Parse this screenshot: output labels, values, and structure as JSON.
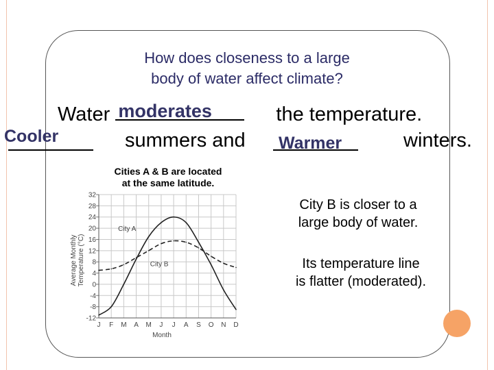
{
  "question": {
    "line1": "How does closeness to a large",
    "line2": "body of water affect climate?"
  },
  "sentence": {
    "water": "Water",
    "moderates_answer": "moderates",
    "temperature": "the temperature.",
    "cooler_answer": "Cooler",
    "summers_and": "summers and",
    "warmer_answer": "Warmer",
    "winters": "winters."
  },
  "note": {
    "line1": "Cities A & B are located",
    "line2": "at the same latitude."
  },
  "right_text": {
    "p1_line1": "City  B is closer to a",
    "p1_line2": "large body of water.",
    "p2_line1": "Its temperature line",
    "p2_line2": "is flatter (moderated)."
  },
  "colors": {
    "accent_dot": "#f6a366",
    "edge_line": "#f2c3ad",
    "title_text": "#2b2b66",
    "answer_text": "#333366"
  },
  "chart_data": {
    "type": "line",
    "xlabel": "Month",
    "ylabel": "Average Monthly Temperature (°C)",
    "categories": [
      "J",
      "F",
      "M",
      "A",
      "M",
      "J",
      "J",
      "A",
      "S",
      "O",
      "N",
      "D"
    ],
    "yticks": [
      32,
      28,
      24,
      20,
      16,
      12,
      8,
      4,
      0,
      -4,
      -8,
      -12
    ],
    "ylim": [
      -12,
      32
    ],
    "grid": true,
    "series": [
      {
        "name": "City A",
        "style": "solid",
        "values": [
          -11,
          -8,
          0,
          9,
          17,
          22,
          24,
          22,
          15,
          7,
          -2,
          -9
        ]
      },
      {
        "name": "City B",
        "style": "dashed",
        "values": [
          5,
          5.5,
          7,
          9.5,
          12,
          14.5,
          15.5,
          15,
          13,
          10,
          7.5,
          6
        ]
      }
    ]
  }
}
